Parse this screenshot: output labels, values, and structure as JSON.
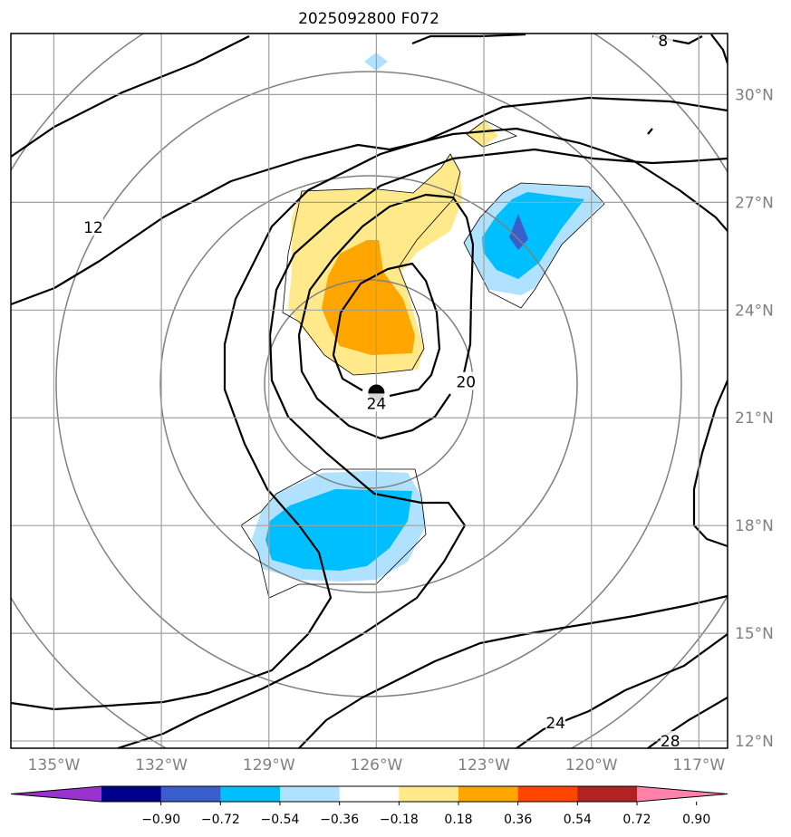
{
  "title": "2025092800 F072",
  "chart_data": {
    "type": "contour map",
    "title": "2025092800 F072",
    "lon_range": [
      -136.2,
      -116.2
    ],
    "lat_range": [
      11.8,
      31.7
    ],
    "x_ticks": [
      "135°W",
      "132°W",
      "129°W",
      "126°W",
      "123°W",
      "120°W",
      "117°W"
    ],
    "x_tick_values": [
      -135,
      -132,
      -129,
      -126,
      -123,
      -120,
      -117
    ],
    "y_ticks": [
      "30°N",
      "27°N",
      "24°N",
      "21°N",
      "18°N",
      "15°N",
      "12°N"
    ],
    "y_tick_values": [
      30,
      27,
      24,
      21,
      18,
      15,
      12
    ],
    "storm_center": {
      "lon": -126.0,
      "lat": 21.7
    },
    "range_rings_deg": [
      3,
      6,
      9,
      12
    ],
    "contour_labels": [
      {
        "text": "8",
        "lon": -118.0,
        "lat": 31.5
      },
      {
        "text": "12",
        "lon": -133.9,
        "lat": 26.3
      },
      {
        "text": "24",
        "lon": -126.0,
        "lat": 21.4
      },
      {
        "text": "20",
        "lon": -123.5,
        "lat": 22.0
      },
      {
        "text": "24",
        "lon": -121.0,
        "lat": 12.5
      },
      {
        "text": "28",
        "lon": -117.8,
        "lat": 12.0
      }
    ],
    "colorbar": {
      "levels": [
        "−0.90",
        "−0.72",
        "−0.54",
        "−0.36",
        "−0.18",
        "0.18",
        "0.36",
        "0.54",
        "0.72",
        "0.90"
      ],
      "level_values": [
        -0.9,
        -0.72,
        -0.54,
        -0.36,
        -0.18,
        0.18,
        0.36,
        0.54,
        0.72,
        0.9
      ],
      "colors": [
        "#9932cc",
        "#00008b",
        "#3a5fcd",
        "#00bfff",
        "#b0e2ff",
        "#ffffff",
        "#ffe98a",
        "#ffa500",
        "#ff4500",
        "#b22222",
        "#ff82ab"
      ],
      "extend": "both"
    }
  }
}
